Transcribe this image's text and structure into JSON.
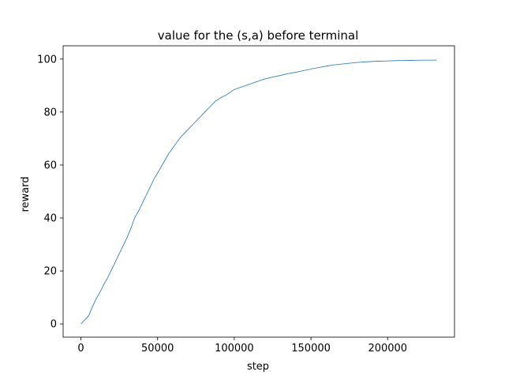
{
  "chart_data": {
    "type": "line",
    "title": "value for the (s,a) before terminal",
    "xlabel": "step",
    "ylabel": "reward",
    "xlim": [
      -11600,
      243600
    ],
    "ylim": [
      -5,
      105
    ],
    "xticks": [
      0,
      50000,
      100000,
      150000,
      200000
    ],
    "yticks": [
      0,
      20,
      40,
      60,
      80,
      100
    ],
    "xtick_labels": [
      "0",
      "50000",
      "100000",
      "150000",
      "200000"
    ],
    "ytick_labels": [
      "0",
      "20",
      "40",
      "60",
      "80",
      "100"
    ],
    "grid": false,
    "line_color": "#1f77b4",
    "series": [
      {
        "x": [
          0,
          2500,
          5000,
          7500,
          10000,
          12500,
          15000,
          17500,
          20000,
          22500,
          25000,
          27500,
          30000,
          32500,
          35000,
          37500,
          40000,
          42500,
          45000,
          47500,
          50000,
          52500,
          55000,
          57500,
          60000,
          62500,
          65000,
          67500,
          70000,
          72500,
          75000,
          77500,
          80000,
          82500,
          85000,
          87500,
          90000,
          92500,
          95000,
          97500,
          100000,
          105000,
          110000,
          115000,
          120000,
          125000,
          130000,
          135000,
          140000,
          145000,
          150000,
          155000,
          160000,
          165000,
          170000,
          175000,
          180000,
          185000,
          190000,
          195000,
          200000,
          205000,
          210000,
          215000,
          220000,
          225000,
          232000
        ],
        "y": [
          0,
          1.5,
          3,
          6.5,
          9.5,
          12,
          15,
          17.5,
          20.5,
          23.5,
          26.5,
          29.5,
          32.5,
          36,
          40,
          42.5,
          45.5,
          48.5,
          51.5,
          54.5,
          57,
          59.5,
          62,
          64.5,
          66.5,
          68.5,
          70.5,
          72,
          73.5,
          75,
          76.5,
          78,
          79.5,
          81,
          82.5,
          84,
          85,
          85.8,
          86.5,
          87.5,
          88.5,
          89.5,
          90.5,
          91.5,
          92.5,
          93.2,
          93.8,
          94.5,
          95,
          95.6,
          96.2,
          96.8,
          97.3,
          97.8,
          98.1,
          98.4,
          98.7,
          98.9,
          99.1,
          99.2,
          99.3,
          99.4,
          99.45,
          99.5,
          99.55,
          99.6,
          99.6
        ]
      }
    ]
  }
}
